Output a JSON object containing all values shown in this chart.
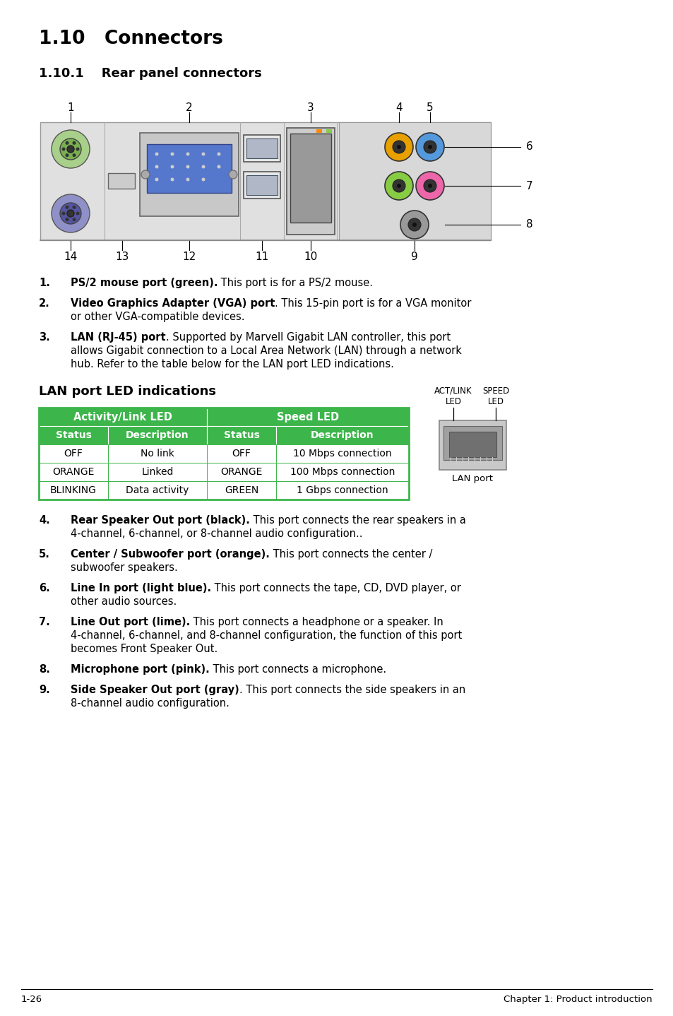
{
  "title1": "1.10   Connectors",
  "title2": "1.10.1    Rear panel connectors",
  "lan_title": "LAN port LED indications",
  "table_header1": "Activity/Link LED",
  "table_header2": "Speed LED",
  "table_col_headers": [
    "Status",
    "Description",
    "Status",
    "Description"
  ],
  "table_rows": [
    [
      "OFF",
      "No link",
      "OFF",
      "10 Mbps connection"
    ],
    [
      "ORANGE",
      "Linked",
      "ORANGE",
      "100 Mbps connection"
    ],
    [
      "BLINKING",
      "Data activity",
      "GREEN",
      "1 Gbps connection"
    ]
  ],
  "table_header_bg": "#3cb54a",
  "table_border_color": "#3cb54a",
  "act_link_label": "ACT/LINK\nLED",
  "speed_label": "SPEED\nLED",
  "lan_port_label": "LAN port",
  "items": [
    {
      "num": "1.",
      "bold": "PS/2 mouse port (green).",
      "text": " This port is for a PS/2 mouse."
    },
    {
      "num": "2.",
      "bold": "Video Graphics Adapter (VGA) port",
      "text": ". This 15-pin port is for a VGA monitor\nor other VGA-compatible devices."
    },
    {
      "num": "3.",
      "bold": "LAN (RJ-45) port",
      "text": ". Supported by Marvell Gigabit LAN controller, this port\nallows Gigabit connection to a Local Area Network (LAN) through a network\nhub. Refer to the table below for the LAN port LED indications."
    },
    {
      "num": "4.",
      "bold": "Rear Speaker Out port (black).",
      "text": " This port connects the rear speakers in a\n4-channel, 6-channel, or 8-channel audio configuration.."
    },
    {
      "num": "5.",
      "bold": "Center / Subwoofer port (orange).",
      "text": " This port connects the center /\nsubwoofer speakers."
    },
    {
      "num": "6.",
      "bold": "Line In port (light blue).",
      "text": " This port connects the tape, CD, DVD player, or\nother audio sources."
    },
    {
      "num": "7.",
      "bold": "Line Out port (lime).",
      "text": " This port connects a headphone or a speaker. In\n4-channel, 6-channel, and 8-channel configuration, the function of this port\nbecomes Front Speaker Out."
    },
    {
      "num": "8.",
      "bold": "Microphone port (pink).",
      "text": " This port connects a microphone."
    },
    {
      "num": "9.",
      "bold": "Side Speaker Out port (gray)",
      "text": ". This port connects the side speakers in an\n8-channel audio configuration."
    }
  ],
  "footer_left": "1-26",
  "footer_right": "Chapter 1: Product introduction",
  "bg_color": "#ffffff"
}
